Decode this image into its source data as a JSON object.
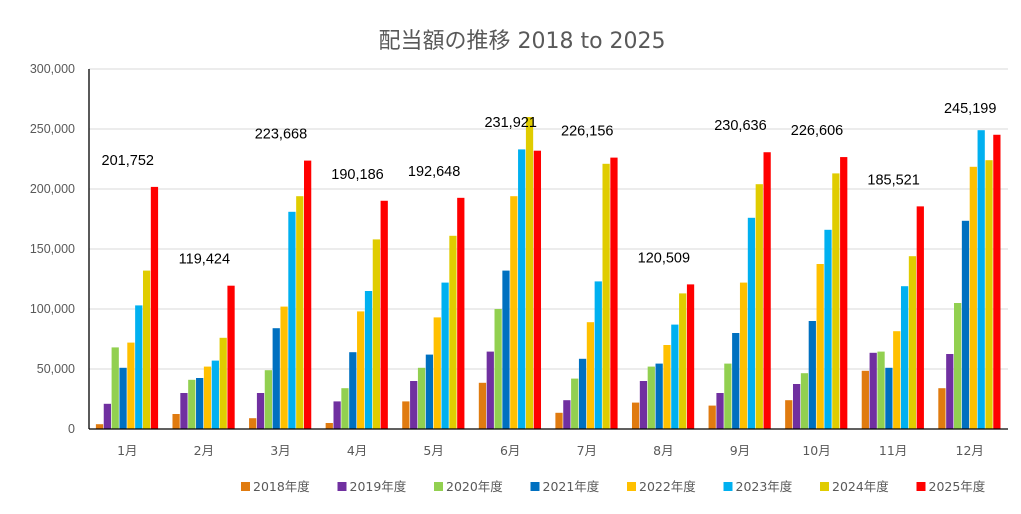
{
  "chart_data": {
    "type": "bar",
    "title": "配当額の推移  2018 to 2025",
    "xlabel": "",
    "ylabel": "",
    "ylim": [
      0,
      300000
    ],
    "yticks": [
      0,
      50000,
      100000,
      150000,
      200000,
      250000,
      300000
    ],
    "ytick_labels": [
      "0",
      "50,000",
      "100,000",
      "150,000",
      "200,000",
      "250,000",
      "300,000"
    ],
    "grid": true,
    "legend_position": "bottom-right",
    "categories": [
      "1月",
      "2月",
      "3月",
      "4月",
      "5月",
      "6月",
      "7月",
      "8月",
      "9月",
      "10月",
      "11月",
      "12月"
    ],
    "series": [
      {
        "name": "2018年度",
        "color": "#E07B10",
        "values": [
          4000,
          12500,
          9000,
          5000,
          23000,
          38500,
          13500,
          22000,
          19500,
          24000,
          48500,
          34000
        ]
      },
      {
        "name": "2019年度",
        "color": "#7030A0",
        "values": [
          21000,
          30000,
          30000,
          23000,
          40000,
          64500,
          24000,
          40000,
          30000,
          37500,
          63500,
          62500
        ]
      },
      {
        "name": "2020年度",
        "color": "#92D050",
        "values": [
          68000,
          41000,
          49000,
          34000,
          51000,
          100000,
          42000,
          52000,
          54500,
          46500,
          64500,
          105000
        ]
      },
      {
        "name": "2021年度",
        "color": "#0070C0",
        "values": [
          51000,
          42500,
          84000,
          64000,
          62000,
          132000,
          58500,
          54500,
          80000,
          90000,
          51000,
          173500
        ]
      },
      {
        "name": "2022年度",
        "color": "#FFC000",
        "values": [
          72000,
          52000,
          102000,
          98000,
          93000,
          194000,
          89000,
          70000,
          122000,
          137500,
          81500,
          218500
        ]
      },
      {
        "name": "2023年度",
        "color": "#00B0F0",
        "values": [
          103000,
          57000,
          181000,
          115000,
          122000,
          233000,
          123000,
          87000,
          176000,
          166000,
          119000,
          249000
        ]
      },
      {
        "name": "2024年度",
        "color": "#E0CC00",
        "values": [
          132000,
          76000,
          194000,
          158000,
          161000,
          260000,
          221000,
          113000,
          204000,
          213000,
          144000,
          224000
        ]
      },
      {
        "name": "2025年度",
        "color": "#FF0000",
        "values": [
          201752,
          119424,
          223668,
          190186,
          192648,
          231921,
          226156,
          120509,
          230636,
          226606,
          185521,
          245199
        ]
      }
    ],
    "data_labels": {
      "series": "2025年度",
      "labels": [
        "201,752",
        "119,424",
        "223,668",
        "190,186",
        "192,648",
        "231,921",
        "226,156",
        "120,509",
        "230,636",
        "226,606",
        "185,521",
        "245,199"
      ]
    }
  }
}
